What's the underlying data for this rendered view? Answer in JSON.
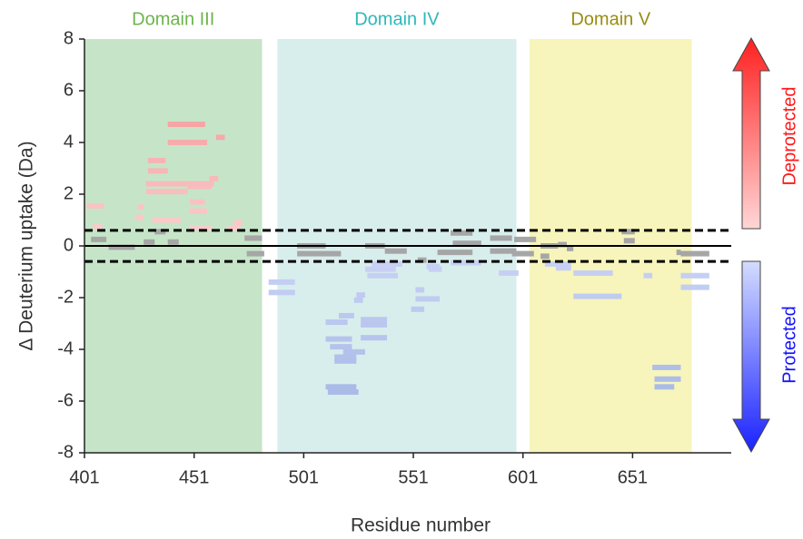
{
  "chart_data": {
    "type": "woods",
    "xlabel": "Residue number",
    "ylabel": "Δ Deuterium uptake (Da)",
    "xlim": [
      401,
      696
    ],
    "ylim": [
      -8,
      8
    ],
    "xticks": [
      401,
      451,
      501,
      551,
      601,
      651
    ],
    "yticks": [
      -8,
      -6,
      -4,
      -2,
      0,
      2,
      4,
      6,
      8
    ],
    "thresholds": [
      0.6,
      -0.6
    ],
    "domains": [
      {
        "name": "Domain III",
        "start": 401,
        "end": 482,
        "fill": "#c6e5c8",
        "color": "#6db44e"
      },
      {
        "name": "Domain IV",
        "start": 489,
        "end": 598,
        "fill": "#d8eeec",
        "color": "#2fb8b8"
      },
      {
        "name": "Domain V",
        "start": 604,
        "end": 678,
        "fill": "#f7f5bb",
        "color": "#9a8c12"
      }
    ],
    "annotations": [
      {
        "text": "Deprotected",
        "color": "#ff1a1a",
        "gradient": [
          "#ffd6d6",
          "#ff2020"
        ]
      },
      {
        "text": "Protected",
        "color": "#1414ff",
        "gradient": [
          "#d4dcff",
          "#1a22ff"
        ]
      }
    ],
    "deprotected_color": [
      "#fbd2d2",
      "#f28686"
    ],
    "protected_color": [
      "#ccd4f6",
      "#9cb0e2"
    ],
    "neutral_color": "#a6a6a6",
    "start": [
      402,
      439,
      439,
      461,
      430,
      430,
      429,
      429,
      448,
      458,
      449,
      449,
      425,
      424,
      432,
      405,
      449,
      469,
      466,
      404,
      412,
      428,
      433,
      439,
      474,
      475,
      498,
      498,
      529,
      538,
      568,
      569,
      562,
      553,
      586,
      586,
      596,
      597,
      609,
      617,
      609,
      646,
      647,
      621,
      673,
      671,
      485,
      485,
      529,
      530,
      532,
      552,
      552,
      550,
      557,
      558,
      568,
      590,
      611,
      616,
      624,
      624,
      656,
      673,
      673,
      660,
      661,
      661,
      525,
      524,
      517,
      511,
      527,
      527,
      527,
      511,
      513,
      519,
      515,
      515,
      511,
      512
    ],
    "end": [
      410,
      456,
      457,
      465,
      438,
      439,
      460,
      448,
      459,
      462,
      456,
      457,
      428,
      428,
      445,
      409,
      459,
      473,
      472,
      411,
      424,
      433,
      438,
      444,
      482,
      483,
      511,
      518,
      538,
      548,
      578,
      582,
      578,
      557,
      596,
      598,
      606,
      607,
      617,
      621,
      613,
      652,
      652,
      624,
      686,
      673,
      497,
      497,
      543,
      544,
      546,
      556,
      563,
      556,
      563,
      564,
      582,
      599,
      623,
      623,
      642,
      646,
      660,
      686,
      686,
      673,
      673,
      670,
      529,
      528,
      524,
      521,
      539,
      539,
      539,
      523,
      523,
      529,
      525,
      525,
      525,
      526
    ],
    "values": [
      1.55,
      4.7,
      4.0,
      4.2,
      3.3,
      2.9,
      2.4,
      2.1,
      2.3,
      2.6,
      1.7,
      1.35,
      1.5,
      1.1,
      1.0,
      0.75,
      0.7,
      0.9,
      0.7,
      0.25,
      -0.05,
      0.15,
      0.55,
      0.15,
      0.3,
      -0.3,
      0.0,
      -0.3,
      0.0,
      -0.2,
      0.5,
      0.1,
      -0.25,
      -0.55,
      0.3,
      -0.2,
      -0.3,
      0.25,
      0.0,
      0.05,
      -0.4,
      0.55,
      0.2,
      -0.1,
      -0.3,
      -0.25,
      -1.4,
      -1.8,
      -0.9,
      -1.15,
      -0.7,
      -1.7,
      -2.05,
      -2.45,
      -0.8,
      -0.9,
      -0.65,
      -1.05,
      -0.7,
      -0.85,
      -1.05,
      -1.95,
      -1.15,
      -1.15,
      -1.6,
      -4.7,
      -5.15,
      -5.45,
      -1.9,
      -2.1,
      -2.7,
      -2.95,
      -2.85,
      -3.05,
      -3.55,
      -3.6,
      -3.9,
      -4.1,
      -4.3,
      -4.45,
      -5.45,
      -5.65
    ]
  }
}
